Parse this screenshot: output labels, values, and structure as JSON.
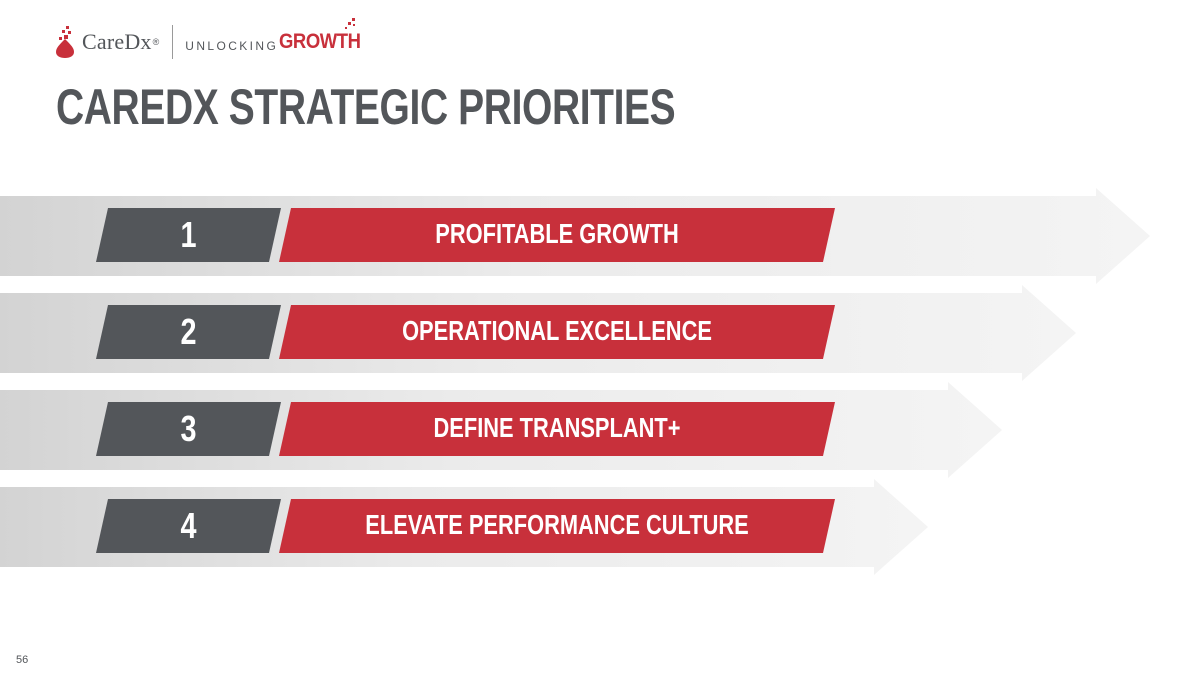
{
  "header": {
    "logo_name": "CareDx",
    "logo_reg": "®",
    "tagline_part1": "UNLOCKING",
    "tagline_part2": "GROWTH"
  },
  "title": "CAREDX STRATEGIC PRIORITIES",
  "priorities": [
    {
      "number": "1",
      "label": "PROFITABLE GROWTH"
    },
    {
      "number": "2",
      "label": "OPERATIONAL EXCELLENCE"
    },
    {
      "number": "3",
      "label": "DEFINE TRANSPLANT+"
    },
    {
      "number": "4",
      "label": "ELEVATE PERFORMANCE CULTURE"
    }
  ],
  "page_number": "56",
  "colors": {
    "brand_red": "#c8303b",
    "dark_gray": "#53565a",
    "arrow_light": "#efefef",
    "arrow_dark": "#d6d6d6"
  },
  "icons": [
    "caredx-logo-icon",
    "pixel-accent-icon"
  ]
}
